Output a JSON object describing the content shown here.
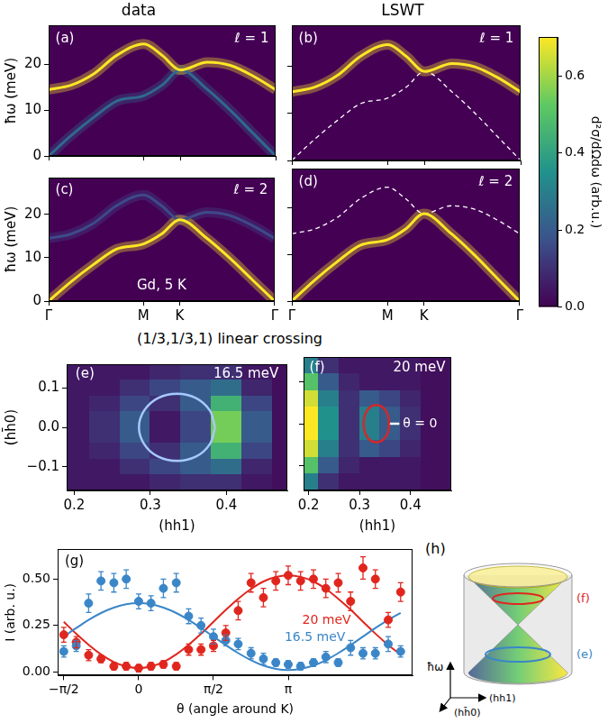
{
  "section_title": "(1/3,1/3,1) linear crossing",
  "chart_data": [
    {
      "panel": "(a)",
      "type": "line",
      "title": "data",
      "label": "ℓ = 1",
      "ylabel": "ħω (meV)",
      "x": [
        0,
        0.1,
        0.2,
        0.3,
        0.42,
        0.5,
        0.58,
        0.7,
        0.8,
        0.9,
        1
      ],
      "xlim": [
        0,
        1
      ],
      "xticks": [
        {
          "value": 0,
          "label": "Γ"
        },
        {
          "value": 0.42,
          "label": "M"
        },
        {
          "value": 0.58,
          "label": "K"
        },
        {
          "value": 1,
          "label": "Γ"
        }
      ],
      "ylim": [
        0,
        28.5
      ],
      "yticks": [
        0,
        10,
        20
      ],
      "tick_labels": "y",
      "series": [
        {
          "color": "#fde725",
          "line_style": "solid",
          "values": [
            14.5,
            15.5,
            18,
            22,
            24.5,
            22,
            18.8,
            20.5,
            19.8,
            17.5,
            14.5
          ]
        },
        {
          "color": "#31688e",
          "line_style": "solid",
          "values": [
            0,
            4.5,
            8.5,
            12,
            13.2,
            15.5,
            18.8,
            14.5,
            10,
            5,
            0
          ]
        }
      ]
    },
    {
      "panel": "(b)",
      "type": "line",
      "title": "LSWT",
      "label": "ℓ = 1",
      "x": [
        0,
        0.1,
        0.2,
        0.3,
        0.42,
        0.5,
        0.58,
        0.7,
        0.8,
        0.9,
        1
      ],
      "xlim": [
        0,
        1
      ],
      "xticks": [
        {
          "value": 0,
          "label": "Γ"
        },
        {
          "value": 0.42,
          "label": "M"
        },
        {
          "value": 0.58,
          "label": "K"
        },
        {
          "value": 1,
          "label": "Γ"
        }
      ],
      "ylim": [
        0,
        28.5
      ],
      "yticks": [
        0,
        10,
        20
      ],
      "tick_labels": false,
      "series": [
        {
          "color": "#fde725",
          "line_style": "solid",
          "values": [
            14.5,
            15.5,
            18,
            22,
            24.5,
            22,
            18.8,
            20.5,
            19.8,
            17.5,
            14.5
          ]
        },
        {
          "color": "#ffffff",
          "line_style": "dashed",
          "values": [
            0,
            4.5,
            8.5,
            12,
            13.2,
            15.5,
            18.8,
            14.5,
            10,
            5,
            0
          ]
        }
      ]
    },
    {
      "panel": "(c)",
      "type": "line",
      "label": "ℓ = 2",
      "note": "Gd, 5 K",
      "ylabel": "ħω (meV)",
      "x": [
        0,
        0.1,
        0.2,
        0.3,
        0.42,
        0.5,
        0.58,
        0.7,
        0.8,
        0.9,
        1
      ],
      "xlim": [
        0,
        1
      ],
      "xticks": [
        {
          "value": 0,
          "label": "Γ"
        },
        {
          "value": 0.42,
          "label": "M"
        },
        {
          "value": 0.58,
          "label": "K"
        },
        {
          "value": 1,
          "label": "Γ"
        }
      ],
      "ylim": [
        0,
        28.5
      ],
      "yticks": [
        0,
        10,
        20
      ],
      "series": [
        {
          "color": "#fde725",
          "line_style": "solid",
          "values": [
            0,
            4.5,
            8.5,
            12,
            13.2,
            15.5,
            18.8,
            14.5,
            10,
            5,
            0
          ]
        },
        {
          "color": "#3e4a89",
          "line_style": "solid",
          "values": [
            14.5,
            15.5,
            18,
            22,
            24.5,
            22,
            18.8,
            20.5,
            19.8,
            17.5,
            14.5
          ]
        }
      ]
    },
    {
      "panel": "(d)",
      "type": "line",
      "label": "ℓ = 2",
      "x": [
        0,
        0.1,
        0.2,
        0.3,
        0.42,
        0.5,
        0.58,
        0.7,
        0.8,
        0.9,
        1
      ],
      "xlim": [
        0,
        1
      ],
      "xticks": [
        {
          "value": 0,
          "label": "Γ"
        },
        {
          "value": 0.42,
          "label": "M"
        },
        {
          "value": 0.58,
          "label": "K"
        },
        {
          "value": 1,
          "label": "Γ"
        }
      ],
      "ylim": [
        0,
        28.5
      ],
      "yticks": [
        0,
        10,
        20
      ],
      "tick_labels": "x",
      "series": [
        {
          "color": "#fde725",
          "line_style": "solid",
          "values": [
            0,
            4.5,
            8.5,
            12,
            13.2,
            15.5,
            18.8,
            14.5,
            10,
            5,
            0
          ]
        },
        {
          "color": "#ffffff",
          "line_style": "dashed",
          "values": [
            14.5,
            15.5,
            18,
            22,
            24.5,
            22,
            18.8,
            20.5,
            19.8,
            17.5,
            14.5
          ]
        }
      ]
    },
    {
      "type": "colorbar",
      "ylabel": "d²σ/dΩdω (arb.u.)",
      "ylim": [
        0,
        0.7
      ],
      "yticks": [
        {
          "value": 0,
          "label": "0.0"
        },
        0.2,
        0.4,
        0.6
      ]
    },
    {
      "panel": "(e)",
      "type": "heatmap",
      "label": "16.5 meV",
      "xlabel": "(hh1)",
      "ylabel": "(hh̄0)",
      "xlim": [
        0.19,
        0.48
      ],
      "xticks": [
        0.2,
        0.3,
        0.4
      ],
      "ylim": [
        -0.16,
        0.16
      ],
      "yticks": [
        {
          "value": -0.1,
          "label": "−0.1"
        },
        {
          "value": 0,
          "label": "0.0"
        },
        0.1
      ],
      "cells": {
        "x": [
          0.2,
          0.24,
          0.28,
          0.32,
          0.36,
          0.4,
          0.44,
          0.48
        ],
        "y": [
          0.14,
          0.1,
          0.06,
          0.02,
          -0.02,
          -0.06,
          -0.1,
          -0.14
        ],
        "values": [
          [
            0.05,
            0.05,
            0.05,
            0.08,
            0.1,
            0.1,
            0.05,
            0.03
          ],
          [
            0.05,
            0.05,
            0.1,
            0.15,
            0.2,
            0.25,
            0.08,
            0.03
          ],
          [
            0.05,
            0.08,
            0.15,
            0.1,
            0.2,
            0.45,
            0.15,
            0.03
          ],
          [
            0.05,
            0.1,
            0.2,
            0.05,
            0.15,
            0.55,
            0.2,
            0.03
          ],
          [
            0.05,
            0.1,
            0.2,
            0.05,
            0.15,
            0.55,
            0.2,
            0.03
          ],
          [
            0.05,
            0.08,
            0.15,
            0.1,
            0.2,
            0.45,
            0.15,
            0.03
          ],
          [
            0.05,
            0.05,
            0.1,
            0.15,
            0.2,
            0.25,
            0.08,
            0.03
          ],
          [
            0.05,
            0.05,
            0.05,
            0.08,
            0.1,
            0.1,
            0.05,
            0.03
          ]
        ]
      },
      "series": [
        {
          "color": "#a6c8ff",
          "line_style": "solid",
          "x": [
            0.385,
            0.378,
            0.36,
            0.335,
            0.31,
            0.292,
            0.285,
            0.292,
            0.31,
            0.335,
            0.36,
            0.378,
            0.385
          ],
          "values": [
            0,
            0.043,
            0.074,
            0.085,
            0.074,
            0.043,
            0,
            -0.043,
            -0.074,
            -0.085,
            -0.074,
            -0.043,
            0
          ]
        }
      ]
    },
    {
      "panel": "(f)",
      "type": "heatmap",
      "label": "20 meV",
      "note": "θ = 0",
      "xlabel": "(hh1)",
      "xlim": [
        0.19,
        0.48
      ],
      "xticks": [
        0.2,
        0.3,
        0.4
      ],
      "ylim": [
        -0.16,
        0.16
      ],
      "yticks": [
        {
          "value": -0.1,
          "label": "−0.1"
        },
        {
          "value": 0,
          "label": "0.0"
        },
        0.1
      ],
      "tick_labels": "x",
      "cells": {
        "x": [
          0.2,
          0.24,
          0.28,
          0.32,
          0.36,
          0.4,
          0.44,
          0.48
        ],
        "y": [
          0.14,
          0.1,
          0.06,
          0.02,
          -0.02,
          -0.06,
          -0.1,
          -0.14
        ],
        "values": [
          [
            0.3,
            0.1,
            0.05,
            0.05,
            0.05,
            0.05,
            0.03,
            0.03
          ],
          [
            0.5,
            0.2,
            0.08,
            0.05,
            0.05,
            0.05,
            0.03,
            0.03
          ],
          [
            0.65,
            0.3,
            0.1,
            0.2,
            0.15,
            0.08,
            0.03,
            0.03
          ],
          [
            0.7,
            0.35,
            0.1,
            0.3,
            0.2,
            0.1,
            0.03,
            0.03
          ],
          [
            0.7,
            0.35,
            0.1,
            0.3,
            0.2,
            0.1,
            0.03,
            0.03
          ],
          [
            0.65,
            0.3,
            0.1,
            0.2,
            0.15,
            0.08,
            0.03,
            0.03
          ],
          [
            0.5,
            0.2,
            0.08,
            0.05,
            0.05,
            0.05,
            0.03,
            0.03
          ],
          [
            0.3,
            0.1,
            0.05,
            0.05,
            0.05,
            0.05,
            0.03,
            0.03
          ]
        ]
      },
      "series": [
        {
          "color": "#d62728",
          "line_style": "solid",
          "x": [
            0.358,
            0.355,
            0.346,
            0.333,
            0.32,
            0.311,
            0.308,
            0.311,
            0.32,
            0.333,
            0.346,
            0.355,
            0.358
          ],
          "values": [
            0,
            0.023,
            0.039,
            0.045,
            0.039,
            0.023,
            0,
            -0.023,
            -0.039,
            -0.045,
            -0.039,
            -0.023,
            0
          ]
        },
        {
          "color": "#ffffff",
          "line_style": "solid",
          "x": [
            0.358,
            0.378
          ],
          "values": [
            0,
            0
          ]
        }
      ]
    },
    {
      "panel": "(g)",
      "type": "scatter",
      "xlabel": "θ (angle around K)",
      "ylabel": "I (arb. u.)",
      "xlim": [
        -1.7,
        5.75
      ],
      "xticks": [
        {
          "value": -1.5708,
          "label": "−π/2"
        },
        0,
        {
          "value": 1.5708,
          "label": "π/2"
        },
        {
          "value": 3.1416,
          "label": "π"
        }
      ],
      "ylim": [
        -0.02,
        0.66
      ],
      "yticks": [
        {
          "value": 0,
          "label": "0.00"
        },
        {
          "value": 0.25,
          "label": "0.25"
        },
        {
          "value": 0.5,
          "label": "0.50"
        }
      ],
      "series": [
        {
          "name": "16.5 meV",
          "color": "#3a86c8",
          "marker": "circle",
          "x": [
            -1.571,
            -1.31,
            -1.05,
            -0.79,
            -0.52,
            -0.26,
            0,
            0.26,
            0.52,
            0.79,
            1.05,
            1.31,
            1.571,
            1.83,
            2.09,
            2.36,
            2.62,
            2.88,
            3.14,
            3.4,
            3.67,
            3.93,
            4.19,
            4.45,
            4.71,
            4.97,
            5.24,
            5.5
          ],
          "values": [
            0.11,
            0.14,
            0.37,
            0.49,
            0.48,
            0.5,
            0.38,
            0.37,
            0.45,
            0.48,
            0.3,
            0.25,
            0.19,
            0.17,
            0.15,
            0.1,
            0.07,
            0.05,
            0.04,
            0.03,
            0.05,
            0.08,
            0.05,
            0.13,
            0.1,
            0.1,
            0.15,
            0.11
          ],
          "errors": [
            0.03,
            0.03,
            0.05,
            0.05,
            0.05,
            0.05,
            0.04,
            0.04,
            0.05,
            0.05,
            0.04,
            0.04,
            0.04,
            0.03,
            0.03,
            0.03,
            0.03,
            0.02,
            0.02,
            0.02,
            0.02,
            0.03,
            0.02,
            0.04,
            0.03,
            0.03,
            0.04,
            0.03
          ]
        },
        {
          "name": "20 meV",
          "color": "#e0261e",
          "marker": "circle",
          "x": [
            -1.571,
            -1.31,
            -1.05,
            -0.79,
            -0.52,
            -0.26,
            0,
            0.26,
            0.52,
            0.79,
            1.05,
            1.31,
            1.571,
            1.83,
            2.09,
            2.36,
            2.62,
            2.88,
            3.14,
            3.4,
            3.67,
            3.93,
            4.19,
            4.45,
            4.71,
            4.97,
            5.24,
            5.5
          ],
          "values": [
            0.2,
            0.16,
            0.09,
            0.07,
            0.03,
            0.03,
            0.02,
            0.03,
            0.04,
            0.03,
            0.12,
            0.12,
            0.14,
            0.21,
            0.33,
            0.48,
            0.4,
            0.49,
            0.52,
            0.49,
            0.5,
            0.45,
            0.48,
            0.38,
            0.56,
            0.5,
            0.28,
            0.43
          ],
          "errors": [
            0.04,
            0.03,
            0.03,
            0.02,
            0.02,
            0.02,
            0.02,
            0.02,
            0.02,
            0.02,
            0.03,
            0.03,
            0.03,
            0.04,
            0.05,
            0.05,
            0.05,
            0.05,
            0.05,
            0.05,
            0.05,
            0.05,
            0.05,
            0.05,
            0.06,
            0.05,
            0.04,
            0.05
          ]
        },
        {
          "type": "line",
          "color": "#3a86c8",
          "line_style": "solid",
          "x": [
            -1.571,
            -1.31,
            -1.05,
            -0.79,
            -0.52,
            -0.26,
            0,
            0.26,
            0.52,
            0.79,
            1.05,
            1.31,
            1.571,
            1.83,
            2.09,
            2.36,
            2.62,
            2.88,
            3.14,
            3.4,
            3.67,
            3.93,
            4.19,
            4.45,
            4.71,
            4.97,
            5.24,
            5.5
          ],
          "values": [
            0.19,
            0.236,
            0.28,
            0.317,
            0.346,
            0.364,
            0.37,
            0.364,
            0.346,
            0.317,
            0.28,
            0.236,
            0.19,
            0.144,
            0.101,
            0.063,
            0.034,
            0.016,
            0.01,
            0.016,
            0.034,
            0.063,
            0.101,
            0.144,
            0.19,
            0.236,
            0.28,
            0.318
          ]
        },
        {
          "type": "line",
          "color": "#e0261e",
          "line_style": "solid",
          "x": [
            -1.571,
            -1.31,
            -1.05,
            -0.79,
            -0.52,
            -0.26,
            0,
            0.26,
            0.52,
            0.79,
            1.05,
            1.31,
            1.571,
            1.83,
            2.09,
            2.36,
            2.62,
            2.88,
            3.14,
            3.4,
            3.67,
            3.93,
            4.19,
            4.45,
            4.71,
            4.97,
            5.24,
            5.5
          ],
          "values": [
            0.27,
            0.205,
            0.146,
            0.094,
            0.053,
            0.029,
            0.02,
            0.029,
            0.053,
            0.094,
            0.146,
            0.205,
            0.27,
            0.334,
            0.394,
            0.447,
            0.487,
            0.511,
            0.52,
            0.512,
            0.487,
            0.447,
            0.394,
            0.335,
            0.27,
            0.206,
            0.145,
            0.093
          ]
        }
      ]
    }
  ],
  "diagram": {
    "panel": "(h)",
    "upper_ring": "(f)",
    "lower_ring": "(e)",
    "axis_up": "ħω",
    "axis_right": "(hh1)",
    "axis_depth": "(hh̄0)"
  }
}
